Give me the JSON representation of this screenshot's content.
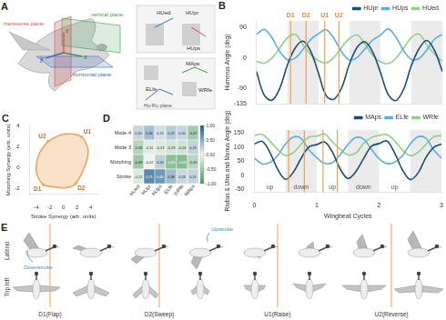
{
  "chart_data": [
    {
      "panel": "B",
      "type": "line",
      "x": [
        0,
        0.125,
        0.25,
        0.375,
        0.5,
        0.625,
        0.75,
        0.875,
        1,
        1.125,
        1.25,
        1.375,
        1.5,
        1.625,
        1.75,
        1.875,
        2,
        2.125,
        2.25,
        2.375,
        2.5,
        2.625,
        2.75,
        2.875,
        3
      ],
      "series": [
        {
          "name": "HUpr",
          "color": "#1b4f72",
          "values": [
            -40,
            -110,
            -125,
            -90,
            -20,
            30,
            50,
            20,
            -45,
            -112,
            -122,
            -88,
            -18,
            32,
            48,
            18,
            -42,
            -108,
            -126,
            -92,
            -22,
            28,
            52,
            22,
            -40
          ]
        },
        {
          "name": "HUps",
          "color": "#5dade2",
          "values": [
            70,
            85,
            60,
            20,
            -5,
            0,
            25,
            55,
            72,
            84,
            58,
            18,
            -6,
            2,
            27,
            53,
            68,
            86,
            62,
            22,
            -4,
            -1,
            24,
            56,
            70
          ]
        },
        {
          "name": "HUed",
          "color": "#8fd08a",
          "values": [
            -10,
            -15,
            0,
            30,
            60,
            70,
            40,
            10,
            -8,
            -14,
            2,
            32,
            58,
            68,
            42,
            8,
            -11,
            -16,
            -1,
            29,
            61,
            71,
            39,
            11,
            -10
          ]
        }
      ],
      "xlim": [
        0,
        3
      ],
      "xticks": [
        0,
        1,
        2,
        3
      ],
      "ylim": [
        -135,
        110
      ],
      "yticks": [
        -135,
        -90,
        0,
        90
      ],
      "y_label": "Humerus Angle (deg)",
      "legend": "top",
      "tick_labels": "y",
      "shade": [
        [
          0.5,
          1
        ],
        [
          1.5,
          2
        ],
        [
          2.5,
          3
        ]
      ],
      "phase_lines": [
        {
          "x": 0.55,
          "label": "D1"
        },
        {
          "x": 0.8,
          "label": "D2"
        },
        {
          "x": 1.1,
          "label": "U1"
        },
        {
          "x": 1.33,
          "label": "U2"
        }
      ]
    },
    {
      "type": "line",
      "x": [
        0,
        0.125,
        0.25,
        0.375,
        0.5,
        0.625,
        0.75,
        0.875,
        1,
        1.125,
        1.25,
        1.375,
        1.5,
        1.625,
        1.75,
        1.875,
        2,
        2.125,
        2.25,
        2.375,
        2.5,
        2.625,
        2.75,
        2.875,
        3
      ],
      "series": [
        {
          "name": "MAps",
          "color": "#1b4f72",
          "values": [
            110,
            120,
            80,
            20,
            -15,
            10,
            60,
            100,
            108,
            118,
            82,
            22,
            -12,
            12,
            58,
            102,
            112,
            121,
            78,
            18,
            -16,
            8,
            62,
            98,
            110
          ]
        },
        {
          "name": "ELfe",
          "color": "#5dade2",
          "values": [
            60,
            40,
            45,
            70,
            110,
            135,
            130,
            90,
            62,
            42,
            44,
            72,
            108,
            133,
            128,
            92,
            58,
            41,
            46,
            69,
            111,
            136,
            131,
            89,
            60
          ]
        },
        {
          "name": "WRfe",
          "color": "#8fd08a",
          "values": [
            140,
            145,
            120,
            90,
            70,
            80,
            110,
            135,
            138,
            146,
            118,
            92,
            72,
            78,
            112,
            133,
            141,
            144,
            121,
            89,
            69,
            81,
            109,
            136,
            140
          ]
        }
      ],
      "xlim": [
        0,
        3
      ],
      "xticks": [
        0,
        1,
        2,
        3
      ],
      "ylim": [
        -60,
        160
      ],
      "yticks": [
        -50,
        0,
        50,
        100,
        150
      ],
      "x_label": "Wingbeat Cycles",
      "y_label": "Radius & Ulna and Manus Angle (deg)",
      "legend": "top",
      "shade": [
        [
          0.5,
          1
        ],
        [
          1.5,
          2
        ],
        [
          2.5,
          3
        ]
      ],
      "phase_lines": [
        {
          "x": 0.55
        },
        {
          "x": 0.8
        },
        {
          "x": 1.1
        },
        {
          "x": 1.33
        }
      ],
      "phase_labels": [
        {
          "x": 0.25,
          "label": "up"
        },
        {
          "x": 0.75,
          "label": "down"
        },
        {
          "x": 1.25,
          "label": "up"
        },
        {
          "x": 1.75,
          "label": "down"
        },
        {
          "x": 2.25,
          "label": "up"
        }
      ]
    },
    {
      "panel": "C",
      "type": "scatter",
      "x": [
        -2.3,
        -0.5,
        1.2,
        2.7,
        3.6,
        3.3,
        1.8,
        0.3,
        -1.5,
        -3,
        -4,
        -3.6,
        -2.3
      ],
      "values": [
        2.5,
        3.1,
        3.2,
        2.9,
        1.8,
        0.4,
        -1.5,
        -1.9,
        -1.8,
        -1.6,
        -0.4,
        1.3,
        2.5
      ],
      "points": [
        {
          "label": "U2",
          "x": -2.3,
          "y": 2.5
        },
        {
          "label": "U1",
          "x": 2.7,
          "y": 2.9
        },
        {
          "label": "D2",
          "x": 1.8,
          "y": -1.5
        },
        {
          "label": "D1",
          "x": -3,
          "y": -1.6
        }
      ],
      "xlim": [
        -5,
        5
      ],
      "xticks": [
        -4,
        -2,
        0,
        2,
        4
      ],
      "ylim": [
        -2.5,
        4
      ],
      "yticks": [
        -2,
        0,
        2,
        4
      ],
      "x_label": "Stroke Synergy (arb. units)",
      "y_label": "Morphing Synergy (arb. units)",
      "color": "#f0a050"
    },
    {
      "panel": "D",
      "type": "heatmap",
      "rows": [
        "Mode 4",
        "Mode 3",
        "Morphing",
        "Stroke"
      ],
      "columns": [
        "HUed",
        "HUpr",
        "HUps",
        "ELfe",
        "WRfe",
        "MAps"
      ],
      "values": [
        [
          0.2,
          0.36,
          0.15,
          0.27,
          0.2,
          -0.47
        ],
        [
          -0.36,
          -0.11,
          -0.13,
          -0.19,
          -0.2,
          0.23
        ],
        [
          -0.49,
          -0.02,
          0.24,
          -0.6,
          -0.64,
          -0.35
        ],
        [
          -0.12,
          0.71,
          0.6,
          0.38,
          0.19,
          0.21
        ]
      ],
      "value_labels": [
        [
          "0,20",
          "0,36",
          "0,15",
          "0,27",
          "0,20",
          "-0,47"
        ],
        [
          "-0,36",
          "-0,11",
          "-0,13",
          "-0,19",
          "-0,20",
          "0,23"
        ],
        [
          "-0,49",
          "-0,02",
          "0,24",
          "-0,60",
          "-0,64",
          "-0,35"
        ],
        [
          "-0,12",
          "0,71",
          "0,60",
          "0,38",
          "0,19",
          "0,21"
        ]
      ],
      "data_labels": true,
      "colorbar": {
        "range": [
          -1,
          1
        ],
        "ticks": [
          {
            "value": 1,
            "label": "1,00"
          },
          {
            "value": 0.5,
            "label": "0,50"
          },
          {
            "value": 0,
            "label": "0,00"
          },
          {
            "value": -0.5,
            "label": "-0,50"
          },
          {
            "value": -1,
            "label": "-1,00"
          }
        ]
      }
    }
  ],
  "diagrams": {
    "A": {
      "panel": "A",
      "planes": [
        {
          "label": "vertical plane",
          "color": "#3a9a4a"
        },
        {
          "label": "transverse plane",
          "color": "#d9534f"
        },
        {
          "label": "horizontal plane",
          "color": "#3b6fc4"
        }
      ],
      "axes": [
        "z",
        "y",
        "x"
      ],
      "shoulder_labels": [
        "HUed",
        "HUpr",
        "HUps"
      ],
      "arm_plane": "Hu-Ru plane",
      "arm_labels": [
        "ELfe",
        "MAps",
        "WRfe"
      ]
    },
    "E": {
      "panel": "E",
      "rows": [
        "Lateral",
        "Top left"
      ],
      "arrows": [
        "Downstroke",
        "Upstroke"
      ],
      "phases": [
        "D1(Flap)",
        "D2(Sweep)",
        "U1(Raise)",
        "U2(Reverse)"
      ]
    }
  }
}
